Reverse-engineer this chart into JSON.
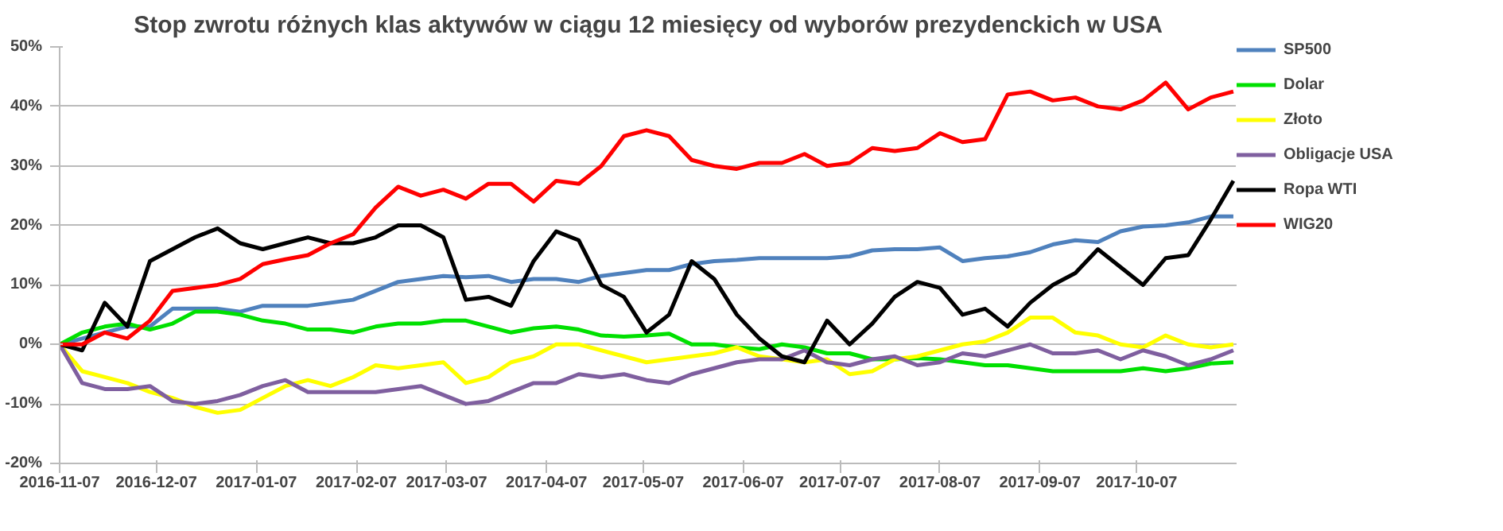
{
  "chart_data": {
    "type": "line",
    "title": "Stop zwrotu różnych klas aktywów w ciągu 12 miesięcy od wyborów prezydenckich w USA",
    "x": [
      "2016-11-07",
      "2016-11-14",
      "2016-11-21",
      "2016-11-28",
      "2016-12-05",
      "2016-12-12",
      "2016-12-19",
      "2016-12-26",
      "2017-01-02",
      "2017-01-09",
      "2017-01-16",
      "2017-01-23",
      "2017-01-30",
      "2017-02-06",
      "2017-02-13",
      "2017-02-20",
      "2017-02-27",
      "2017-03-06",
      "2017-03-13",
      "2017-03-20",
      "2017-03-27",
      "2017-04-03",
      "2017-04-10",
      "2017-04-17",
      "2017-04-24",
      "2017-05-01",
      "2017-05-08",
      "2017-05-15",
      "2017-05-22",
      "2017-05-29",
      "2017-06-05",
      "2017-06-12",
      "2017-06-19",
      "2017-06-26",
      "2017-07-03",
      "2017-07-10",
      "2017-07-17",
      "2017-07-24",
      "2017-07-31",
      "2017-08-07",
      "2017-08-14",
      "2017-08-21",
      "2017-08-28",
      "2017-09-04",
      "2017-09-11",
      "2017-09-18",
      "2017-09-25",
      "2017-10-02",
      "2017-10-09",
      "2017-10-16",
      "2017-10-23",
      "2017-10-30",
      "2017-11-06"
    ],
    "series": [
      {
        "name": "SP500",
        "color": "#4f81bd",
        "values": [
          0,
          1,
          2,
          3,
          3,
          6,
          6,
          6,
          5.5,
          6.5,
          6.5,
          6.5,
          7,
          7.5,
          9,
          10.5,
          11,
          11.5,
          11.3,
          11.5,
          10.5,
          11,
          11,
          10.5,
          11.5,
          12,
          12.5,
          12.5,
          13.5,
          14,
          14.2,
          14.5,
          14.5,
          14.5,
          14.5,
          14.8,
          15.8,
          16,
          16,
          16.3,
          14,
          14.5,
          14.8,
          15.5,
          16.8,
          17.5,
          17.2,
          19,
          19.8,
          20,
          20.5,
          21.5,
          21.5
        ]
      },
      {
        "name": "Dolar",
        "color": "#00e000",
        "values": [
          0,
          2,
          3,
          3.5,
          2.5,
          3.5,
          5.5,
          5.5,
          5,
          4,
          3.5,
          2.5,
          2.5,
          2,
          3,
          3.5,
          3.5,
          4,
          4,
          3,
          2,
          2.7,
          3,
          2.5,
          1.5,
          1.3,
          1.5,
          1.8,
          0,
          0,
          -0.5,
          -0.8,
          0,
          -0.5,
          -1.5,
          -1.5,
          -2.5,
          -2.5,
          -2.3,
          -2.5,
          -3,
          -3.5,
          -3.5,
          -4,
          -4.5,
          -4.5,
          -4.5,
          -4.5,
          -4,
          -4.5,
          -4,
          -3.2,
          -3
        ]
      },
      {
        "name": "Złoto",
        "color": "#ffff00",
        "values": [
          0,
          -4.5,
          -5.5,
          -6.5,
          -8,
          -9,
          -10.5,
          -11.5,
          -11,
          -9,
          -7,
          -6,
          -7,
          -5.5,
          -3.5,
          -4,
          -3.5,
          -3,
          -6.5,
          -5.5,
          -3,
          -2,
          0,
          0,
          -1,
          -2,
          -3,
          -2.5,
          -2,
          -1.5,
          -0.5,
          -2,
          -2.5,
          -3,
          -2.5,
          -5,
          -4.5,
          -2.5,
          -2,
          -1,
          0,
          0.5,
          2,
          4.5,
          4.5,
          2,
          1.5,
          0,
          -0.5,
          1.5,
          0,
          -0.5,
          0
        ]
      },
      {
        "name": "Obligacje USA",
        "color": "#7f5f9f",
        "values": [
          0,
          -6.5,
          -7.5,
          -7.5,
          -7,
          -9.5,
          -10,
          -9.5,
          -8.5,
          -7,
          -6,
          -8,
          -8,
          -8,
          -8,
          -7.5,
          -7,
          -8.5,
          -10,
          -9.5,
          -8,
          -6.5,
          -6.5,
          -5,
          -5.5,
          -5,
          -6,
          -6.5,
          -5,
          -4,
          -3,
          -2.5,
          -2.5,
          -1,
          -3,
          -3.5,
          -2.5,
          -2,
          -3.5,
          -3,
          -1.5,
          -2,
          -1,
          0,
          -1.5,
          -1.5,
          -1,
          -2.5,
          -1,
          -2,
          -3.5,
          -2.5,
          -1
        ]
      },
      {
        "name": "Ropa WTI",
        "color": "#000000",
        "values": [
          0,
          -1,
          7,
          3,
          14,
          16,
          18,
          19.5,
          17,
          16,
          17,
          18,
          17,
          17,
          18,
          20,
          20,
          18,
          7.5,
          8,
          6.5,
          14,
          19,
          17.5,
          10,
          8,
          2,
          5,
          14,
          11,
          5,
          1,
          -2,
          -3,
          4,
          0,
          3.5,
          8,
          10.5,
          9.5,
          5,
          6,
          3,
          7,
          10,
          12,
          16,
          13,
          10,
          14.5,
          15,
          21,
          27.5
        ]
      },
      {
        "name": "WIG20",
        "color": "#ff0000",
        "values": [
          0,
          0,
          2,
          1,
          4,
          9,
          9.5,
          10,
          11,
          13.5,
          14.3,
          15,
          17,
          18.5,
          23,
          26.5,
          25,
          26,
          24.5,
          27,
          27,
          24,
          27.5,
          27,
          30,
          35,
          36,
          35,
          31,
          30,
          29.5,
          30.5,
          30.5,
          32,
          30,
          30.5,
          33,
          32.5,
          33,
          35.5,
          34,
          34.5,
          42,
          42.5,
          41,
          41.5,
          40,
          39.5,
          41,
          44,
          39.5,
          41.5,
          42.5
        ]
      }
    ],
    "xlim": [
      "2016-11-07",
      "2017-11-07"
    ],
    "xticks": [
      "2016-11-07",
      "2016-12-07",
      "2017-01-07",
      "2017-02-07",
      "2017-03-07",
      "2017-04-07",
      "2017-05-07",
      "2017-06-07",
      "2017-07-07",
      "2017-08-07",
      "2017-09-07",
      "2017-10-07"
    ],
    "ylim": [
      -20,
      50
    ],
    "yticks": [
      {
        "value": -20,
        "label": "-20%"
      },
      {
        "value": -10,
        "label": "-10%"
      },
      {
        "value": 0,
        "label": "0%"
      },
      {
        "value": 10,
        "label": "10%"
      },
      {
        "value": 20,
        "label": "20%"
      },
      {
        "value": 30,
        "label": "30%"
      },
      {
        "value": 40,
        "label": "40%"
      },
      {
        "value": 50,
        "label": "50%"
      }
    ],
    "grid": "y",
    "legend": "right",
    "marker": "none",
    "line_style": "solid"
  }
}
